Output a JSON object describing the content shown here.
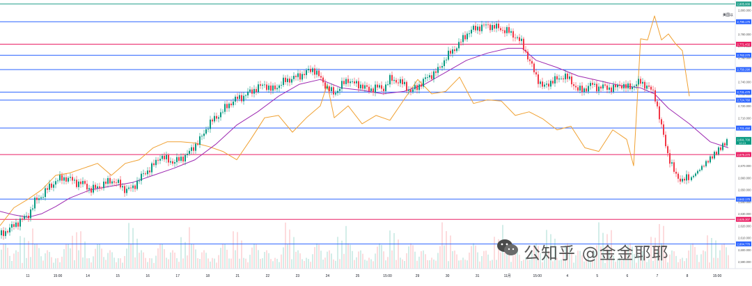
{
  "chart_data": {
    "type": "line",
    "y_axis": {
      "side": "right",
      "range": [
        2590,
        2806
      ],
      "ticks": [
        2800,
        2780,
        2770,
        2760,
        2750,
        2740,
        2730,
        2720,
        2710,
        2690,
        2680,
        2670,
        2660,
        2650,
        2640,
        2630,
        2620,
        2610,
        2600,
        2590
      ],
      "tick_labels": [
        "2,800.000",
        "2,780.000",
        "2,770.000",
        "2,760.000",
        "2,750.000",
        "2,740.000",
        "2,730.000",
        "2,720.000",
        "2,710.000",
        "2,690.000",
        "2,680.000",
        "2,670.000",
        "2,660.000",
        "2,650.000",
        "2,640.000",
        "2,630.000",
        "2,620.000",
        "2,610.000",
        "2,600.000",
        "2,590.000"
      ]
    },
    "x_axis": {
      "tick_labels": [
        "11",
        "15:00",
        "14",
        "15",
        "16",
        "17",
        "18",
        "21",
        "22",
        "23",
        "24",
        "25",
        "15:00",
        "29",
        "30",
        "31",
        "11月",
        "15:00",
        "4",
        "5",
        "6",
        "7",
        "8",
        "15:00"
      ]
    },
    "header_label": "美国以",
    "level_lines": [
      {
        "value": 2805.0,
        "label": "2,805.000",
        "color": "#1f9e89"
      },
      {
        "value": 2790.17,
        "label": "2,790.170",
        "color": "#2962ff"
      },
      {
        "value": 2771.432,
        "label": "2,771.432",
        "color": "#e91e63"
      },
      {
        "value": 2762.27,
        "label": "2,762.270",
        "color": "#2962ff"
      },
      {
        "value": 2750.29,
        "label": "2,750.290",
        "color": "#2962ff"
      },
      {
        "value": 2731.47,
        "label": "2,731.470",
        "color": "#2962ff"
      },
      {
        "value": 2724.76,
        "label": "2,724.760",
        "color": "#2962ff"
      },
      {
        "value": 2701.45,
        "label": "2,701.450",
        "color": "#2962ff"
      },
      {
        "value": 2679.37,
        "label": "2,679.370",
        "color": "#e91e63"
      },
      {
        "value": 2642.17,
        "label": "2,642.170",
        "color": "#2962ff"
      },
      {
        "value": 2625.307,
        "label": "2,625.307",
        "color": "#e91e63"
      },
      {
        "value": 2604.77,
        "label": "2,604.770",
        "color": "#2962ff"
      }
    ],
    "current_price": {
      "value": 2691.7,
      "label": "2,691.700",
      "sub_label": "12:13"
    },
    "price_series": {
      "x": [
        0,
        10,
        20,
        30,
        40,
        50,
        60,
        70,
        80,
        90,
        100,
        110,
        120,
        130,
        140,
        150,
        160,
        170,
        180,
        190,
        200,
        210,
        220,
        230,
        240,
        250,
        260,
        270,
        280,
        290,
        300,
        310,
        320,
        330,
        340,
        350,
        360,
        370,
        380,
        390,
        400,
        410,
        420,
        430,
        440,
        450,
        460,
        470,
        480,
        490,
        500,
        510,
        520,
        530,
        540,
        550,
        560,
        570,
        580,
        590,
        600,
        610,
        620,
        630,
        640,
        650,
        660,
        670,
        680,
        690,
        700,
        710,
        720,
        730,
        740,
        750,
        760,
        770,
        780,
        790,
        800,
        810,
        820,
        830,
        840,
        850,
        860,
        870,
        880,
        890,
        900,
        910,
        920,
        930,
        940,
        950,
        960,
        970,
        980,
        990
      ],
      "close": [
        2612,
        2616,
        2620,
        2625,
        2628,
        2640,
        2645,
        2652,
        2657,
        2660,
        2659,
        2656,
        2655,
        2650,
        2652,
        2655,
        2658,
        2655,
        2650,
        2651,
        2659,
        2665,
        2670,
        2678,
        2675,
        2673,
        2676,
        2680,
        2687,
        2694,
        2705,
        2710,
        2716,
        2722,
        2726,
        2728,
        2732,
        2735,
        2738,
        2733,
        2737,
        2741,
        2743,
        2745,
        2748,
        2751,
        2743,
        2735,
        2730,
        2737,
        2742,
        2738,
        2737,
        2733,
        2736,
        2734,
        2742,
        2741,
        2738,
        2732,
        2736,
        2742,
        2746,
        2750,
        2760,
        2766,
        2772,
        2780,
        2784,
        2786,
        2787,
        2786,
        2784,
        2782,
        2778,
        2772,
        2758,
        2745,
        2735,
        2740,
        2742,
        2745,
        2741,
        2733,
        2734,
        2738,
        2735,
        2736,
        2734,
        2738,
        2735,
        2737,
        2740,
        2736,
        2730,
        2702,
        2678,
        2662,
        2658,
        2660
      ]
    },
    "ma_series": {
      "x": [
        0,
        20,
        40,
        60,
        80,
        100,
        130,
        160,
        190,
        220,
        250,
        280,
        310,
        340,
        370,
        400,
        430,
        460,
        490,
        520,
        550,
        580,
        610,
        640,
        670,
        700,
        730,
        750,
        770,
        800,
        830,
        860,
        890,
        920,
        940,
        960,
        990,
        1020,
        1046
      ],
      "value": [
        2632,
        2629,
        2627,
        2630,
        2636,
        2643,
        2650,
        2653,
        2656,
        2662,
        2668,
        2675,
        2688,
        2704,
        2715,
        2728,
        2738,
        2742,
        2735,
        2733,
        2730,
        2732,
        2738,
        2748,
        2758,
        2764,
        2768,
        2768,
        2758,
        2752,
        2745,
        2741,
        2737,
        2735,
        2730,
        2718,
        2705,
        2690,
        2685
      ]
    },
    "overlay_series": {
      "x": [
        0,
        20,
        40,
        60,
        80,
        100,
        120,
        140,
        160,
        180,
        200,
        220,
        240,
        260,
        280,
        300,
        320,
        340,
        360,
        380,
        400,
        420,
        440,
        460,
        470,
        480,
        500,
        520,
        540,
        560,
        580,
        600,
        620,
        640,
        660,
        680,
        700,
        720,
        740,
        760,
        780,
        800,
        820,
        840,
        860,
        880,
        900,
        910,
        920,
        930,
        940,
        950,
        960,
        970,
        980,
        990
      ],
      "value": [
        2620,
        2635,
        2642,
        2650,
        2662,
        2664,
        2668,
        2672,
        2662,
        2672,
        2675,
        2685,
        2690,
        2690,
        2689,
        2686,
        2682,
        2675,
        2692,
        2710,
        2712,
        2698,
        2710,
        2720,
        2738,
        2710,
        2720,
        2705,
        2712,
        2708,
        2725,
        2742,
        2730,
        2732,
        2744,
        2722,
        2725,
        2724,
        2712,
        2715,
        2709,
        2700,
        2703,
        2685,
        2682,
        2700,
        2692,
        2670,
        2776,
        2775,
        2795,
        2775,
        2780,
        2772,
        2766,
        2728
      ]
    }
  },
  "watermark": {
    "text": "公知乎 @金金耶耶",
    "icon": "wechat-icon"
  }
}
